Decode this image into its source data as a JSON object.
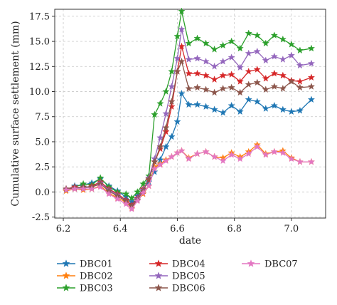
{
  "chart_data": {
    "type": "line",
    "xlabel": "date",
    "ylabel": "Cumulative surface settlement (mm)",
    "xlim": [
      6.17,
      7.12
    ],
    "ylim": [
      -2.6,
      18.2
    ],
    "xticks": [
      6.2,
      6.4,
      6.6,
      6.8,
      7.0
    ],
    "xtick_labels": [
      "6.2",
      "6.4",
      "6.6",
      "6.8",
      "7.0"
    ],
    "yticks": [
      -2.5,
      0.0,
      2.5,
      5.0,
      7.5,
      10.0,
      12.5,
      15.0,
      17.5
    ],
    "ytick_labels": [
      "-2.5",
      "0.0",
      "2.5",
      "5.0",
      "7.5",
      "10.0",
      "12.5",
      "15.0",
      "17.5"
    ],
    "grid": true,
    "legend_position": "bottom",
    "x": [
      6.21,
      6.24,
      6.27,
      6.3,
      6.33,
      6.36,
      6.39,
      6.42,
      6.44,
      6.46,
      6.48,
      6.5,
      6.52,
      6.54,
      6.56,
      6.58,
      6.6,
      6.615,
      6.64,
      6.67,
      6.7,
      6.73,
      6.76,
      6.79,
      6.82,
      6.85,
      6.88,
      6.91,
      6.94,
      6.97,
      7.0,
      7.03,
      7.07
    ],
    "series": [
      {
        "name": "DBC01",
        "color": "#1f77b4",
        "marker": "star",
        "values": [
          0.2,
          0.6,
          0.7,
          0.9,
          1.3,
          0.6,
          0.1,
          -0.5,
          -1.0,
          -0.4,
          0.3,
          1.0,
          2.0,
          3.2,
          4.5,
          5.5,
          7.0,
          9.8,
          8.7,
          8.7,
          8.5,
          8.2,
          7.9,
          8.6,
          8.0,
          9.2,
          9.0,
          8.3,
          8.6,
          8.2,
          8.0,
          8.1,
          9.2
        ]
      },
      {
        "name": "DBC02",
        "color": "#ff7f0e",
        "marker": "star",
        "values": [
          0.1,
          0.3,
          0.2,
          0.3,
          0.6,
          -0.1,
          -0.6,
          -1.0,
          -1.6,
          -0.8,
          -0.2,
          0.6,
          2.5,
          2.8,
          3.2,
          3.5,
          3.9,
          4.1,
          3.4,
          3.8,
          4.0,
          3.5,
          3.4,
          3.9,
          3.5,
          4.0,
          4.7,
          3.8,
          4.0,
          4.1,
          3.4,
          3.0,
          3.0
        ]
      },
      {
        "name": "DBC03",
        "color": "#2ca02c",
        "marker": "star",
        "values": [
          0.2,
          0.5,
          0.8,
          0.7,
          1.4,
          0.5,
          0.0,
          -0.2,
          -0.6,
          0.0,
          0.8,
          1.6,
          7.7,
          8.8,
          10.0,
          12.0,
          15.5,
          18.0,
          14.8,
          15.3,
          14.8,
          14.2,
          14.6,
          15.0,
          14.3,
          15.8,
          15.6,
          14.8,
          15.6,
          15.2,
          14.7,
          14.1,
          14.3
        ]
      },
      {
        "name": "DBC04",
        "color": "#d62728",
        "marker": "star",
        "values": [
          0.3,
          0.5,
          0.4,
          0.6,
          1.0,
          0.3,
          -0.2,
          -0.8,
          -1.3,
          -0.6,
          0.3,
          1.2,
          3.0,
          4.3,
          6.0,
          8.5,
          12.0,
          14.5,
          11.8,
          11.8,
          11.6,
          11.2,
          11.6,
          11.7,
          11.0,
          12.0,
          12.2,
          11.3,
          11.8,
          11.6,
          11.1,
          11.0,
          11.4
        ]
      },
      {
        "name": "DBC05",
        "color": "#9467bd",
        "marker": "star",
        "values": [
          0.3,
          0.4,
          0.4,
          0.5,
          0.9,
          0.2,
          -0.3,
          -0.9,
          -1.4,
          -0.7,
          0.2,
          1.4,
          3.3,
          5.4,
          7.8,
          10.5,
          13.3,
          16.2,
          13.2,
          13.3,
          13.0,
          12.5,
          13.0,
          13.4,
          12.4,
          13.8,
          14.0,
          13.1,
          13.5,
          13.2,
          13.6,
          12.6,
          12.8
        ]
      },
      {
        "name": "DBC06",
        "color": "#8c564b",
        "marker": "star",
        "values": [
          0.3,
          0.4,
          0.5,
          0.5,
          0.8,
          0.1,
          -0.4,
          -0.9,
          -1.4,
          -0.8,
          0.1,
          1.3,
          3.0,
          4.5,
          6.4,
          9.0,
          12.0,
          13.0,
          10.3,
          10.4,
          10.2,
          9.9,
          10.3,
          10.4,
          9.9,
          10.7,
          10.9,
          10.2,
          10.5,
          10.3,
          11.0,
          10.4,
          10.5
        ]
      },
      {
        "name": "DBC07",
        "color": "#e377c2",
        "marker": "star",
        "values": [
          0.2,
          0.3,
          0.3,
          0.3,
          0.5,
          -0.2,
          -0.7,
          -1.2,
          -1.7,
          -0.9,
          -0.1,
          0.6,
          2.3,
          2.7,
          3.1,
          3.5,
          3.9,
          4.1,
          3.3,
          3.8,
          4.0,
          3.5,
          3.1,
          3.7,
          3.3,
          3.8,
          4.5,
          3.7,
          4.0,
          3.9,
          3.3,
          3.0,
          3.0
        ]
      }
    ]
  }
}
